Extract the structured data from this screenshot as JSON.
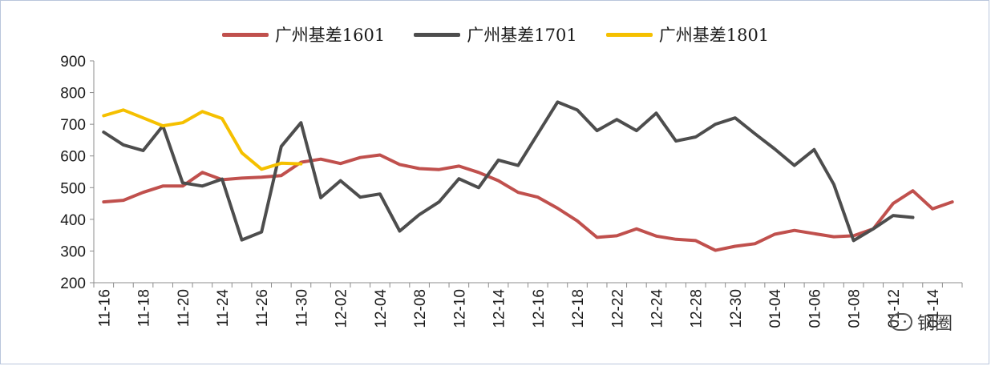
{
  "chart_data": {
    "type": "line",
    "title": "",
    "xlabel": "",
    "ylabel": "",
    "ylim": [
      200,
      900
    ],
    "yticks": [
      200,
      300,
      400,
      500,
      600,
      700,
      800,
      900
    ],
    "grid": false,
    "legend_position": "top",
    "categories": [
      "11-16",
      "11-17",
      "11-18",
      "11-19",
      "11-20",
      "11-23",
      "11-24",
      "11-25",
      "11-26",
      "11-27",
      "11-30",
      "12-01",
      "12-02",
      "12-03",
      "12-04",
      "12-07",
      "12-08",
      "12-09",
      "12-10",
      "12-11",
      "12-14",
      "12-15",
      "12-16",
      "12-17",
      "12-18",
      "12-21",
      "12-22",
      "12-23",
      "12-24",
      "12-25",
      "12-28",
      "12-29",
      "12-30",
      "12-31",
      "01-04",
      "01-05",
      "01-06",
      "01-07",
      "01-08",
      "01-11",
      "01-12",
      "01-13",
      "01-14",
      "01-15"
    ],
    "tick_labels": [
      "11-16",
      "11-18",
      "11-20",
      "11-24",
      "11-26",
      "11-30",
      "12-02",
      "12-04",
      "12-08",
      "12-10",
      "12-14",
      "12-16",
      "12-18",
      "12-22",
      "12-24",
      "12-28",
      "12-30",
      "01-04",
      "01-06",
      "01-08",
      "01-12",
      "01-14"
    ],
    "series": [
      {
        "name": "广州基差1601",
        "color": "#c0504d",
        "values": [
          455,
          460,
          485,
          505,
          505,
          548,
          525,
          530,
          533,
          538,
          580,
          590,
          576,
          595,
          603,
          573,
          560,
          557,
          568,
          548,
          522,
          485,
          470,
          435,
          395,
          343,
          348,
          370,
          347,
          337,
          333,
          302,
          315,
          323,
          353,
          365,
          355,
          345,
          348,
          370,
          450,
          490,
          433,
          455
        ]
      },
      {
        "name": "广州基差1701",
        "color": "#4d4d4d",
        "values": [
          675,
          635,
          617,
          695,
          515,
          505,
          527,
          335,
          360,
          630,
          705,
          468,
          522,
          470,
          480,
          363,
          415,
          455,
          528,
          500,
          587,
          570,
          670,
          770,
          745,
          680,
          715,
          680,
          735,
          647,
          660,
          700,
          720,
          670,
          622,
          570,
          620,
          510,
          333,
          370,
          412,
          406,
          null,
          null
        ]
      },
      {
        "name": "广州基差1801",
        "color": "#f5c000",
        "values": [
          727,
          745,
          720,
          695,
          705,
          740,
          718,
          610,
          558,
          577,
          575,
          null,
          null,
          null,
          null,
          null,
          null,
          null,
          null,
          null,
          null,
          null,
          null,
          null,
          null,
          null,
          null,
          null,
          null,
          null,
          null,
          null,
          null,
          null,
          null,
          null,
          null,
          null,
          null,
          null,
          null,
          null,
          null,
          null
        ]
      }
    ]
  },
  "watermark": {
    "text": "钢圈",
    "icon": "wechat-icon"
  }
}
